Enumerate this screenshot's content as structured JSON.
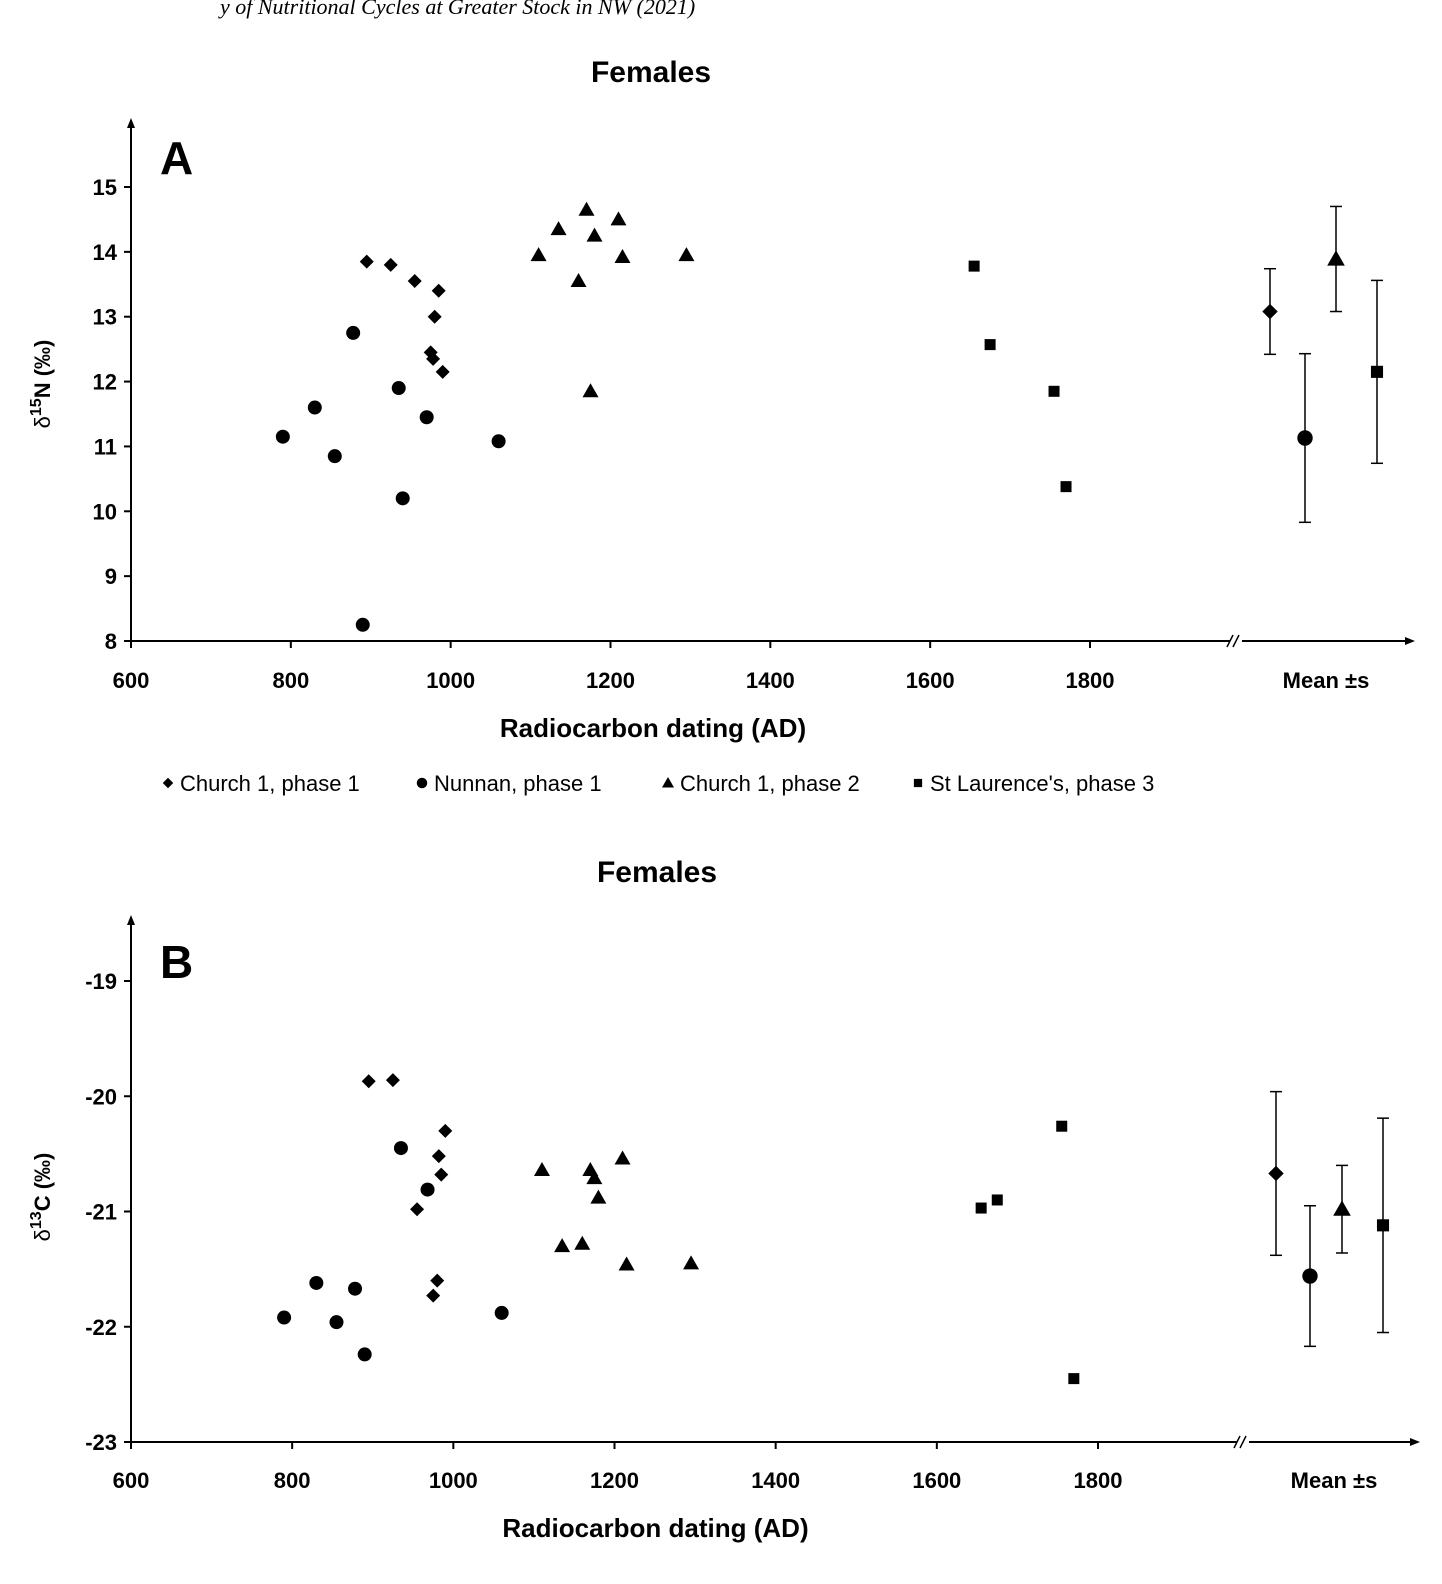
{
  "header": {
    "caption": "y of Nutritional Cycles at Greater Stock in NW (2021)"
  },
  "legend": [
    {
      "marker": "diamond",
      "label": "Church 1, phase 1"
    },
    {
      "marker": "circle",
      "label": "Nunnan, phase 1"
    },
    {
      "marker": "triangle",
      "label": "Church 1, phase 2"
    },
    {
      "marker": "square",
      "label": "St Laurence's, phase 3"
    }
  ],
  "chart_data": [
    {
      "type": "scatter",
      "panel": "A",
      "title": "Females",
      "xlabel": "Radiocarbon dating (AD)",
      "ylabel_main": "δ",
      "ylabel_sup": "15",
      "ylabel_rest": "N (‰)",
      "xlim": [
        600,
        1800
      ],
      "ylim": [
        8,
        15
      ],
      "xticks": [
        600,
        800,
        1000,
        1200,
        1400,
        1600,
        1800
      ],
      "yticks": [
        8,
        9,
        10,
        11,
        12,
        13,
        14,
        15
      ],
      "mean_label": "Mean ±s",
      "grid": false,
      "series": [
        {
          "name": "Church 1, phase 1",
          "marker": "diamond",
          "x": [
            895,
            925,
            955,
            985,
            980,
            975,
            978,
            990
          ],
          "y": [
            13.85,
            13.8,
            13.55,
            13.4,
            13.0,
            12.45,
            12.35,
            12.15
          ]
        },
        {
          "name": "Nunnan, phase 1",
          "marker": "circle",
          "x": [
            790,
            830,
            855,
            878,
            890,
            935,
            940,
            970,
            1060
          ],
          "y": [
            11.15,
            11.6,
            10.85,
            12.75,
            8.25,
            11.9,
            10.2,
            11.45,
            11.08
          ]
        },
        {
          "name": "Church 1, phase 2",
          "marker": "triangle",
          "x": [
            1110,
            1135,
            1160,
            1170,
            1175,
            1180,
            1210,
            1215,
            1295
          ],
          "y": [
            13.95,
            14.35,
            13.55,
            14.65,
            11.85,
            14.25,
            14.5,
            13.92,
            13.95
          ]
        },
        {
          "name": "St Laurence's, phase 3",
          "marker": "square",
          "x": [
            1655,
            1675,
            1755,
            1770
          ],
          "y": [
            13.78,
            12.57,
            11.85,
            10.38
          ]
        }
      ],
      "means": [
        {
          "series": "Church 1, phase 1",
          "marker": "diamond",
          "mean": 13.08,
          "sd": 0.66
        },
        {
          "series": "Nunnan, phase 1",
          "marker": "circle",
          "mean": 11.13,
          "sd": 1.3
        },
        {
          "series": "Church 1, phase 2",
          "marker": "triangle",
          "mean": 13.89,
          "sd": 0.81
        },
        {
          "series": "St Laurence's, phase 3",
          "marker": "square",
          "mean": 12.15,
          "sd": 1.41
        }
      ]
    },
    {
      "type": "scatter",
      "panel": "B",
      "title": "Females",
      "xlabel": "Radiocarbon dating (AD)",
      "ylabel_main": "δ",
      "ylabel_sup": "13",
      "ylabel_rest": "C (‰)",
      "xlim": [
        600,
        1800
      ],
      "ylim": [
        -23,
        -19
      ],
      "xticks": [
        600,
        800,
        1000,
        1200,
        1400,
        1600,
        1800
      ],
      "yticks": [
        -23,
        -22,
        -21,
        -20,
        -19
      ],
      "mean_label": "Mean ±s",
      "grid": false,
      "series": [
        {
          "name": "Church 1, phase 1",
          "marker": "diamond",
          "x": [
            895,
            925,
            955,
            975,
            980,
            982,
            985,
            990
          ],
          "y": [
            -19.87,
            -19.86,
            -20.98,
            -21.73,
            -21.6,
            -20.52,
            -20.68,
            -20.3
          ]
        },
        {
          "name": "Nunnan, phase 1",
          "marker": "circle",
          "x": [
            790,
            830,
            855,
            878,
            890,
            935,
            968,
            1060
          ],
          "y": [
            -21.92,
            -21.62,
            -21.96,
            -21.67,
            -22.24,
            -20.45,
            -20.81,
            -21.88
          ]
        },
        {
          "name": "Church 1, phase 2",
          "marker": "triangle",
          "x": [
            1110,
            1135,
            1160,
            1170,
            1175,
            1180,
            1210,
            1215,
            1295
          ],
          "y": [
            -20.64,
            -21.3,
            -21.28,
            -20.64,
            -20.71,
            -20.88,
            -20.54,
            -21.46,
            -21.45
          ]
        },
        {
          "name": "St Laurence's, phase 3",
          "marker": "square",
          "x": [
            1655,
            1675,
            1755,
            1770
          ],
          "y": [
            -20.97,
            -20.9,
            -20.26,
            -22.45
          ]
        }
      ],
      "means": [
        {
          "series": "Church 1, phase 1",
          "marker": "diamond",
          "mean": -20.67,
          "sd": 0.71
        },
        {
          "series": "Nunnan, phase 1",
          "marker": "circle",
          "mean": -21.56,
          "sd": 0.61
        },
        {
          "series": "Church 1, phase 2",
          "marker": "triangle",
          "mean": -20.98,
          "sd": 0.38
        },
        {
          "series": "St Laurence's, phase 3",
          "marker": "square",
          "mean": -21.12,
          "sd": 0.93
        }
      ]
    }
  ]
}
